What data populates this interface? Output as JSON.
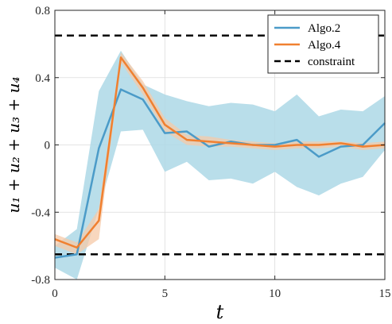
{
  "chart_data": {
    "type": "line",
    "title": "",
    "xlabel": "t",
    "ylabel": "u₁ + u₂ + u₃ + u₄",
    "xlim": [
      0,
      15
    ],
    "ylim": [
      -0.8,
      0.8
    ],
    "xticks": [
      0,
      5,
      10,
      15
    ],
    "xtick_labels": [
      "0",
      "5",
      "10",
      "15"
    ],
    "yticks": [
      -0.8,
      -0.4,
      0,
      0.4,
      0.8
    ],
    "ytick_labels": [
      "-0.8",
      "-0.4",
      "0",
      "0.4",
      "0.8"
    ],
    "grid": true,
    "legend_position": "top-right",
    "x": [
      0,
      1,
      2,
      3,
      4,
      5,
      6,
      7,
      8,
      9,
      10,
      11,
      12,
      13,
      14,
      15
    ],
    "series": [
      {
        "name": "Algo.2",
        "color": "#4B9BC8",
        "band_color": "#ADD8E6",
        "values": [
          -0.67,
          -0.65,
          -0.02,
          0.33,
          0.27,
          0.07,
          0.08,
          -0.01,
          0.02,
          0.0,
          0.0,
          0.03,
          -0.07,
          -0.01,
          0.0,
          0.13
        ],
        "band_upper": [
          -0.6,
          -0.5,
          0.32,
          0.56,
          0.36,
          0.3,
          0.26,
          0.23,
          0.25,
          0.24,
          0.2,
          0.3,
          0.17,
          0.21,
          0.2,
          0.29
        ],
        "band_lower": [
          -0.73,
          -0.8,
          -0.38,
          0.08,
          0.09,
          -0.16,
          -0.1,
          -0.21,
          -0.2,
          -0.23,
          -0.16,
          -0.25,
          -0.3,
          -0.23,
          -0.19,
          -0.03
        ]
      },
      {
        "name": "Algo.4",
        "color": "#F08030",
        "band_color": "#F5C9A8",
        "values": [
          -0.56,
          -0.61,
          -0.45,
          0.52,
          0.34,
          0.12,
          0.03,
          0.02,
          0.01,
          0.0,
          -0.01,
          0.0,
          0.0,
          0.01,
          -0.01,
          0.0
        ],
        "band_upper": [
          -0.53,
          -0.58,
          -0.38,
          0.55,
          0.38,
          0.16,
          0.06,
          0.05,
          0.03,
          0.02,
          0.01,
          0.02,
          0.02,
          0.02,
          0.01,
          0.02
        ],
        "band_lower": [
          -0.6,
          -0.65,
          -0.56,
          0.49,
          0.3,
          0.08,
          0.0,
          -0.01,
          -0.01,
          -0.02,
          -0.03,
          -0.02,
          -0.02,
          -0.01,
          -0.03,
          -0.02
        ]
      }
    ],
    "constraint": {
      "name": "constraint",
      "color": "#000000",
      "style": "dashed",
      "levels": [
        0.65,
        -0.65
      ]
    }
  }
}
